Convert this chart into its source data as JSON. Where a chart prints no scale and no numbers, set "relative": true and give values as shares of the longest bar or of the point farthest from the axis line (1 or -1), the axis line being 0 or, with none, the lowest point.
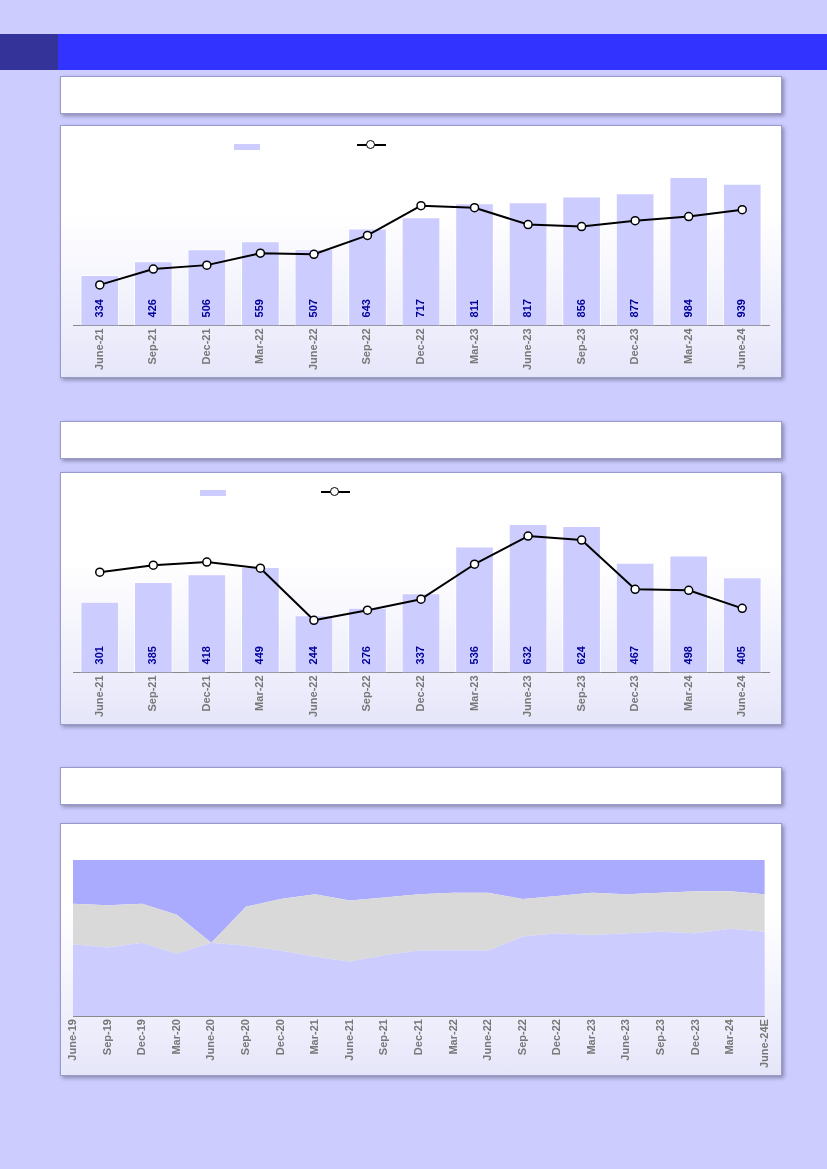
{
  "chart_data": [
    {
      "type": "bar",
      "categories": [
        "June-21",
        "Sep-21",
        "Dec-21",
        "Mar-22",
        "June-22",
        "Sep-22",
        "Dec-22",
        "Mar-23",
        "June-23",
        "Sep-23",
        "Dec-23",
        "Mar-24",
        "June-24"
      ],
      "tick_labels": "x",
      "marker": "circle",
      "series": [
        {
          "type": "bar",
          "color": "#ccccff",
          "values": [
            334,
            426,
            506,
            559,
            507,
            643,
            717,
            811,
            817,
            856,
            877,
            984,
            939
          ],
          "value_labels": [
            "334",
            "426",
            "506",
            "559",
            "507",
            "643",
            "717",
            "811",
            "817",
            "856",
            "877",
            "984",
            "939"
          ]
        },
        {
          "type": "line",
          "color": "#000000",
          "values": [
            269,
            374,
            400,
            479,
            472,
            597,
            794,
            781,
            669,
            656,
            695,
            722,
            768
          ]
        }
      ]
    },
    {
      "type": "bar",
      "categories": [
        "June-21",
        "Sep-21",
        "Dec-21",
        "Mar-22",
        "June-22",
        "Sep-22",
        "Dec-22",
        "Mar-23",
        "June-23",
        "Sep-23",
        "Dec-23",
        "Mar-24",
        "June-24"
      ],
      "tick_labels": "x",
      "marker": "circle",
      "series": [
        {
          "type": "bar",
          "color": "#ccccff",
          "values": [
            301,
            385,
            418,
            449,
            244,
            276,
            337,
            536,
            632,
            624,
            467,
            498,
            405
          ],
          "value_labels": [
            "301",
            "385",
            "418",
            "449",
            "244",
            "276",
            "337",
            "536",
            "632",
            "624",
            "467",
            "498",
            "405"
          ]
        },
        {
          "type": "line",
          "color": "#000000",
          "values": [
            427,
            457,
            470,
            444,
            222,
            265,
            312,
            461,
            581,
            564,
            354,
            350,
            273
          ]
        }
      ]
    },
    {
      "type": "area",
      "stacked": true,
      "relative": true,
      "categories": [
        "June-19",
        "Sep-19",
        "Dec-19",
        "Mar-20",
        "June-20",
        "Sep-20",
        "Dec-20",
        "Mar-21",
        "June-21",
        "Sep-21",
        "Dec-21",
        "Mar-22",
        "June-22",
        "Sep-22",
        "Dec-22",
        "Mar-23",
        "June-23",
        "Sep-23",
        "Dec-23",
        "Mar-24",
        "June-24E"
      ],
      "series": [
        {
          "color": "#ccccff",
          "values": [
            0.46,
            0.44,
            0.47,
            0.4,
            0.47,
            0.45,
            0.42,
            0.38,
            0.35,
            0.39,
            0.42,
            0.42,
            0.42,
            0.51,
            0.53,
            0.52,
            0.53,
            0.54,
            0.53,
            0.56,
            0.54
          ]
        },
        {
          "color": "#d9d9d9",
          "values": [
            0.26,
            0.27,
            0.25,
            0.25,
            0,
            0.25,
            0.33,
            0.4,
            0.39,
            0.37,
            0.36,
            0.37,
            0.37,
            0.24,
            0.24,
            0.27,
            0.25,
            0.25,
            0.27,
            0.24,
            0.24
          ]
        },
        {
          "color": "#aaaaff",
          "values": [
            0.28,
            0.29,
            0.28,
            0.35,
            0.53,
            0.3,
            0.25,
            0.22,
            0.26,
            0.24,
            0.22,
            0.21,
            0.21,
            0.25,
            0.23,
            0.21,
            0.22,
            0.21,
            0.2,
            0.2,
            0.22
          ]
        }
      ]
    }
  ]
}
